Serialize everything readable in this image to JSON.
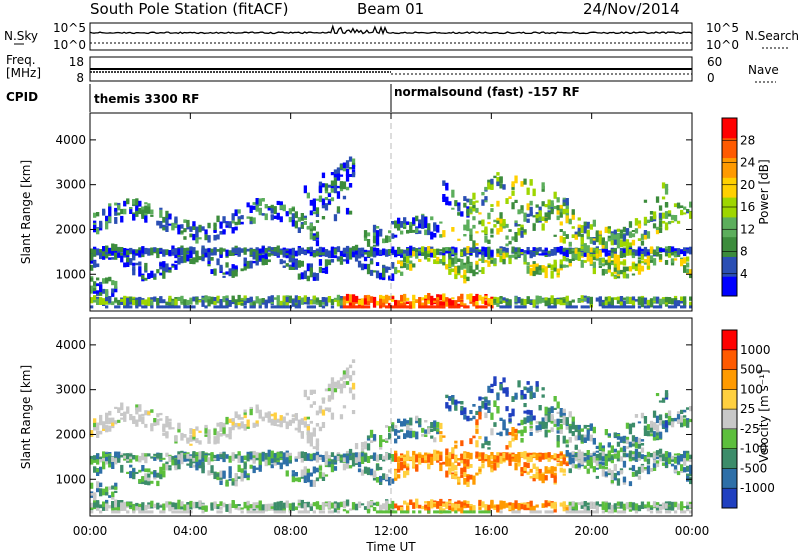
{
  "header": {
    "station": "South Pole Station (fitACF)",
    "beam": "Beam 01",
    "date": "24/Nov/2014"
  },
  "noise_panel": {
    "left_label": "N.Sky",
    "right_label": "N.Search",
    "left_ticks": [
      "10^5",
      "10^0"
    ],
    "right_ticks": [
      "10^5",
      "10^0"
    ]
  },
  "freq_panel": {
    "left_label_1": "Freq.",
    "left_label_2": "[MHz]",
    "right_label": "Nave",
    "left_ticks": [
      "18",
      "8"
    ],
    "right_ticks": [
      "60",
      "0"
    ]
  },
  "cpid": {
    "label": "CPID",
    "segments": [
      {
        "text": "themis 3300 RF",
        "start_hour": 0
      },
      {
        "text": "normalsound (fast) -157 RF",
        "start_hour": 12
      }
    ]
  },
  "chart_data": [
    {
      "type": "heatmap",
      "name": "power",
      "ylabel": "Slant Range [km]",
      "yticks": [
        "1000",
        "2000",
        "3000",
        "4000"
      ],
      "ylim": [
        180,
        4600
      ],
      "xlim": [
        0,
        24
      ],
      "colorbar": {
        "label": "Power [dB]",
        "ticks": [
          "4",
          "8",
          "12",
          "16",
          "20",
          "24",
          "28"
        ],
        "range": [
          0,
          32
        ],
        "colors": [
          "#0000ff",
          "#2b4fb4",
          "#3c8c3c",
          "#5cae5c",
          "#9ed600",
          "#ffd000",
          "#ff9a00",
          "#ff5a00",
          "#ff0000"
        ]
      }
    },
    {
      "type": "heatmap",
      "name": "velocity",
      "ylabel": "Slant Range [km]",
      "yticks": [
        "1000",
        "2000",
        "3000",
        "4000"
      ],
      "ylim": [
        180,
        4600
      ],
      "xlim": [
        0,
        24
      ],
      "xticks": [
        "00:00",
        "04:00",
        "08:00",
        "12:00",
        "16:00",
        "20:00",
        "00:00"
      ],
      "xlabel": "Time UT",
      "colorbar": {
        "label": "Velocity [m s⁻¹]",
        "ticks": [
          "1000",
          "500",
          "100",
          "25",
          "-25",
          "-100",
          "-500",
          "-1000"
        ],
        "colors": [
          "#2040c0",
          "#2e6fa8",
          "#3c8c6a",
          "#5cbf3c",
          "#c8c8c8",
          "#ffd040",
          "#ff9a00",
          "#ff5a00",
          "#ff0000"
        ]
      }
    }
  ]
}
